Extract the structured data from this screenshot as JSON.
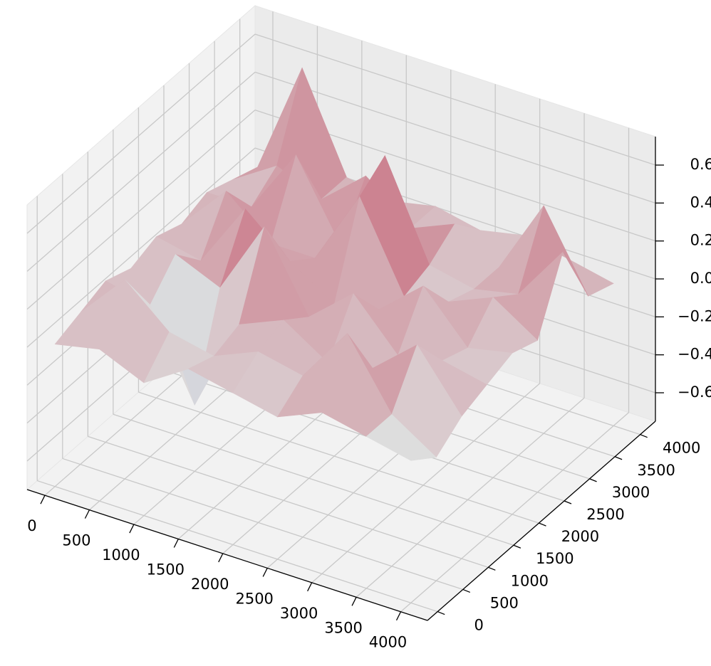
{
  "chart_data": {
    "type": "surface",
    "colormap": "coolwarm",
    "grid": true,
    "x": [
      0,
      500,
      1000,
      1500,
      2000,
      2500,
      3000,
      3500,
      4000
    ],
    "y": [
      0,
      500,
      1000,
      1500,
      2000,
      2500,
      3000,
      3500,
      4000
    ],
    "z": [
      [
        0.0,
        0.05,
        -0.05,
        0.1,
        0.05,
        0.0,
        0.1,
        0.05,
        0.0
      ],
      [
        0.05,
        0.3,
        0.1,
        0.05,
        0.15,
        0.1,
        0.4,
        0.05,
        -0.1
      ],
      [
        0.1,
        0.05,
        -0.4,
        0.1,
        0.2,
        0.05,
        0.1,
        0.3,
        0.0
      ],
      [
        0.05,
        0.2,
        0.1,
        0.5,
        0.1,
        0.3,
        0.05,
        0.1,
        0.05
      ],
      [
        0.1,
        0.05,
        0.4,
        0.2,
        0.05,
        0.1,
        0.3,
        0.05,
        0.1
      ],
      [
        0.05,
        0.3,
        0.1,
        0.1,
        0.5,
        0.05,
        0.1,
        0.2,
        0.05
      ],
      [
        0.1,
        0.1,
        0.45,
        0.05,
        0.6,
        0.1,
        0.05,
        0.1,
        0.4
      ],
      [
        0.05,
        0.2,
        0.1,
        0.3,
        0.1,
        0.2,
        0.05,
        0.45,
        0.05
      ],
      [
        0.0,
        0.6,
        0.1,
        0.05,
        0.1,
        0.05,
        0.1,
        0.05,
        0.0
      ]
    ],
    "xlim": [
      -200,
      4300
    ],
    "ylim": [
      -200,
      4300
    ],
    "zlim": [
      -0.75,
      0.75
    ],
    "xticks": [
      0,
      500,
      1000,
      1500,
      2000,
      2500,
      3000,
      3500,
      4000
    ],
    "yticks": [
      0,
      500,
      1000,
      1500,
      2000,
      2500,
      3000,
      3500,
      4000
    ],
    "zticks": [
      {
        "value": -0.6,
        "label": "−0.6"
      },
      {
        "value": -0.4,
        "label": "−0.4"
      },
      {
        "value": -0.2,
        "label": "−0.2"
      },
      {
        "value": 0,
        "label": "0.0"
      },
      0.2,
      0.4,
      0.6
    ]
  }
}
